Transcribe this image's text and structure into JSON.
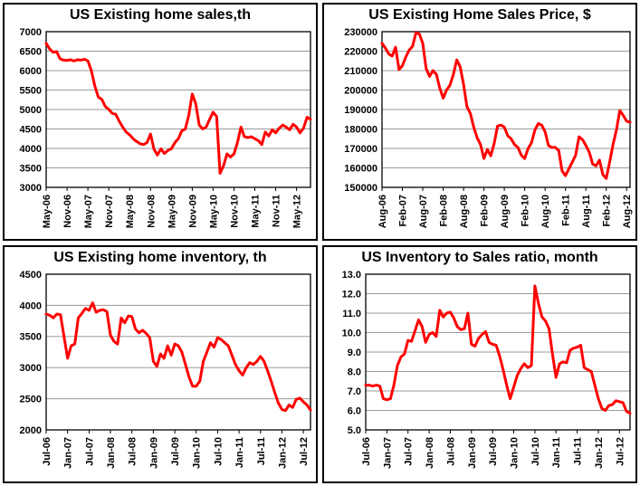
{
  "style": {
    "line_color": "#ff0000",
    "grid_color": "#9a9a9a",
    "axis_color": "#000000",
    "background": "#ffffff",
    "panel_border": "#000000"
  },
  "chart_data": [
    {
      "type": "line",
      "title": "US Existing home sales,th",
      "ylabel": "",
      "xlabel": "",
      "ylim": [
        3000,
        7000
      ],
      "y_tick_values": [
        7000,
        6500,
        6000,
        5500,
        5000,
        4500,
        4000,
        3500,
        3000
      ],
      "y_tick_labels": [
        "7000",
        "6500",
        "6000",
        "5500",
        "5000",
        "4500",
        "4000",
        "3500",
        "3000"
      ],
      "x_tick_labels": [
        "May-06",
        "Nov-06",
        "May-07",
        "Nov-07",
        "May-08",
        "Nov-08",
        "May-09",
        "Nov-09",
        "May-10",
        "Nov-10",
        "May-11",
        "Nov-11",
        "May-12"
      ],
      "x_tick_every": 6,
      "grid": true,
      "legend": "none",
      "values": [
        6700,
        6560,
        6470,
        6490,
        6300,
        6270,
        6260,
        6280,
        6250,
        6280,
        6270,
        6290,
        6250,
        6000,
        5600,
        5320,
        5260,
        5080,
        5000,
        4900,
        4880,
        4700,
        4550,
        4420,
        4350,
        4250,
        4180,
        4120,
        4100,
        4150,
        4370,
        3980,
        3830,
        3990,
        3870,
        3950,
        3990,
        4150,
        4250,
        4450,
        4500,
        4850,
        5400,
        5150,
        4600,
        4500,
        4550,
        4750,
        4930,
        4820,
        3360,
        3550,
        3860,
        3780,
        3860,
        4150,
        4550,
        4300,
        4280,
        4300,
        4250,
        4200,
        4100,
        4420,
        4320,
        4480,
        4400,
        4520,
        4600,
        4550,
        4480,
        4620,
        4550,
        4400,
        4520,
        4800,
        4750
      ]
    },
    {
      "type": "line",
      "title": "US Existing Home Sales Price, $",
      "ylabel": "",
      "xlabel": "",
      "ylim": [
        150000,
        230000
      ],
      "y_tick_values": [
        230000,
        220000,
        210000,
        200000,
        190000,
        180000,
        170000,
        160000,
        150000
      ],
      "y_tick_labels": [
        "230000",
        "220000",
        "210000",
        "200000",
        "190000",
        "180000",
        "170000",
        "160000",
        "150000"
      ],
      "x_tick_labels": [
        "Aug-06",
        "Feb-07",
        "Aug-07",
        "Feb-08",
        "Aug-08",
        "Feb-09",
        "Aug-09",
        "Feb-10",
        "Aug-10",
        "Feb-11",
        "Aug-11",
        "Feb-12",
        "Aug-12"
      ],
      "x_tick_every": 6,
      "grid": true,
      "legend": "none",
      "values": [
        224000,
        221500,
        218500,
        217500,
        222000,
        210500,
        212500,
        217000,
        220500,
        222500,
        229500,
        228800,
        224000,
        211000,
        207000,
        210000,
        208000,
        201000,
        195800,
        200000,
        202500,
        208000,
        215500,
        212000,
        203000,
        191500,
        188000,
        181000,
        175500,
        172000,
        164800,
        169500,
        166200,
        172500,
        181500,
        182000,
        181000,
        176500,
        175000,
        172000,
        170500,
        166500,
        164800,
        170000,
        173000,
        179500,
        182800,
        182000,
        178500,
        171500,
        170500,
        170500,
        169000,
        158500,
        156000,
        159500,
        163000,
        166500,
        176000,
        174500,
        171500,
        168000,
        162000,
        161000,
        164000,
        156500,
        154600,
        163000,
        172000,
        179500,
        189500,
        187000,
        184000,
        183500
      ]
    },
    {
      "type": "line",
      "title": "US Existing home inventory, th",
      "ylabel": "",
      "xlabel": "",
      "ylim": [
        2000,
        4500
      ],
      "y_tick_values": [
        4500,
        4000,
        3500,
        3000,
        2500,
        2000
      ],
      "y_tick_labels": [
        "4500",
        "4000",
        "3500",
        "3000",
        "2500",
        "2000"
      ],
      "x_tick_labels": [
        "Jul-06",
        "Jan-07",
        "Jul-07",
        "Jan-08",
        "Jul-08",
        "Jan-09",
        "Jul-09",
        "Jan-10",
        "Jul-10",
        "Jan-11",
        "Jul-11",
        "Jan-12",
        "Jul-12"
      ],
      "x_tick_every": 6,
      "grid": true,
      "legend": "none",
      "values": [
        3860,
        3840,
        3800,
        3860,
        3850,
        3500,
        3150,
        3350,
        3380,
        3800,
        3870,
        3950,
        3920,
        4040,
        3890,
        3920,
        3930,
        3900,
        3520,
        3420,
        3380,
        3800,
        3720,
        3830,
        3820,
        3620,
        3560,
        3600,
        3550,
        3480,
        3100,
        3020,
        3220,
        3150,
        3350,
        3200,
        3380,
        3350,
        3250,
        3050,
        2850,
        2700,
        2700,
        2780,
        3100,
        3250,
        3400,
        3330,
        3480,
        3450,
        3400,
        3350,
        3200,
        3050,
        2950,
        2880,
        3000,
        3080,
        3050,
        3100,
        3180,
        3100,
        2950,
        2780,
        2600,
        2430,
        2330,
        2310,
        2400,
        2360,
        2490,
        2510,
        2450,
        2400,
        2320
      ]
    },
    {
      "type": "line",
      "title": "US Inventory to Sales ratio, month",
      "ylabel": "",
      "xlabel": "",
      "ylim": [
        5.0,
        13.0
      ],
      "y_tick_values": [
        13.0,
        12.0,
        11.0,
        10.0,
        9.0,
        8.0,
        7.0,
        6.0,
        5.0
      ],
      "y_tick_labels": [
        "13.0",
        "12.0",
        "11.0",
        "10.0",
        "9.0",
        "8.0",
        "7.0",
        "6.0",
        "5.0"
      ],
      "x_tick_labels": [
        "Jul-06",
        "Jan-07",
        "Jul-07",
        "Jan-08",
        "Jul-08",
        "Jan-09",
        "Jul-09",
        "Jan-10",
        "Jul-10",
        "Jan-11",
        "Jul-11",
        "Jan-12",
        "Jul-12"
      ],
      "x_tick_every": 6,
      "grid": true,
      "legend": "none",
      "values": [
        7.3,
        7.3,
        7.25,
        7.3,
        7.25,
        6.6,
        6.55,
        6.6,
        7.3,
        8.3,
        8.75,
        8.9,
        9.6,
        9.55,
        10.1,
        10.65,
        10.3,
        9.5,
        9.9,
        10.0,
        9.8,
        11.15,
        10.8,
        11.0,
        11.05,
        10.75,
        10.3,
        10.15,
        10.2,
        11.0,
        9.4,
        9.3,
        9.7,
        9.9,
        10.05,
        9.5,
        9.4,
        9.35,
        8.8,
        8.1,
        7.3,
        6.6,
        7.2,
        7.8,
        8.15,
        8.4,
        8.2,
        8.3,
        12.4,
        11.5,
        10.8,
        10.6,
        10.2,
        8.9,
        7.7,
        8.4,
        8.5,
        8.45,
        9.1,
        9.2,
        9.25,
        9.35,
        8.2,
        8.1,
        8.0,
        7.3,
        6.6,
        6.1,
        6.0,
        6.25,
        6.3,
        6.5,
        6.45,
        6.4,
        5.95,
        5.85
      ]
    }
  ]
}
